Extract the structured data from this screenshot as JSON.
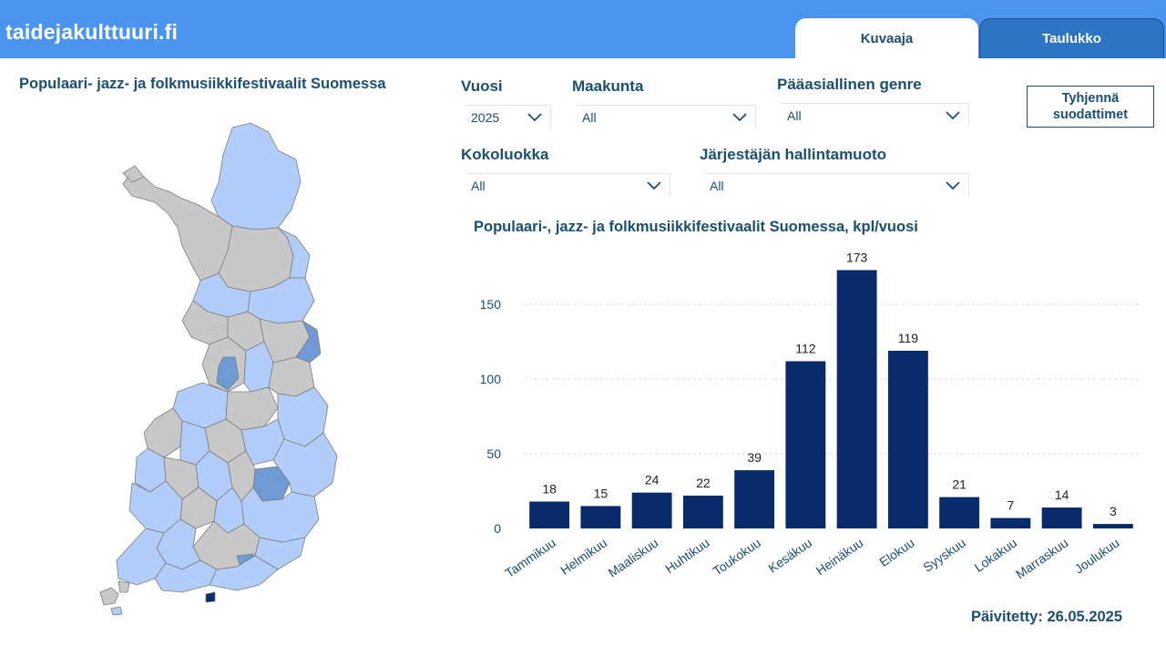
{
  "header": {
    "brand": "taidejakulttuuri.fi",
    "tabs": [
      {
        "label": "Kuvaaja",
        "active": true
      },
      {
        "label": "Taulukko",
        "active": false
      }
    ]
  },
  "map": {
    "title": "Populaari- jazz- ja folkmusiikkifestivaalit Suomessa",
    "colors": {
      "none": "#c8c8c8",
      "low": "#b3cdfa",
      "mid": "#6f9ad3",
      "high": "#0a2b6b"
    }
  },
  "filters": {
    "year": {
      "label": "Vuosi",
      "value": "2025"
    },
    "region": {
      "label": "Maakunta",
      "value": "All"
    },
    "genre": {
      "label": "Pääasiallinen genre",
      "value": "All"
    },
    "size": {
      "label": "Kokoluokka",
      "value": "All"
    },
    "org": {
      "label": "Järjestäjän hallintamuoto",
      "value": "All"
    },
    "clear_label": "Tyhjennä suodattimet"
  },
  "colors": {
    "accent": "#4b94f0",
    "bar": "#0a2b6b",
    "text": "#1b4f72"
  },
  "chart_data": {
    "type": "bar",
    "title": "Populaari-, jazz- ja folkmusiikkifestivaalit Suomessa, kpl/vuosi",
    "categories": [
      "Tammikuu",
      "Helmikuu",
      "Maaliskuu",
      "Huhtikuu",
      "Toukokuu",
      "Kesäkuu",
      "Heinäkuu",
      "Elokuu",
      "Syyskuu",
      "Lokakuu",
      "Marraskuu",
      "Joulukuu"
    ],
    "values": [
      18,
      15,
      24,
      22,
      39,
      112,
      173,
      119,
      21,
      7,
      14,
      3
    ],
    "yticks": [
      0,
      50,
      100,
      150
    ],
    "ylim": [
      0,
      180
    ],
    "grid": true,
    "xlabel": "",
    "ylabel": ""
  },
  "footer": {
    "updated": "Päivitetty: 26.05.2025"
  }
}
